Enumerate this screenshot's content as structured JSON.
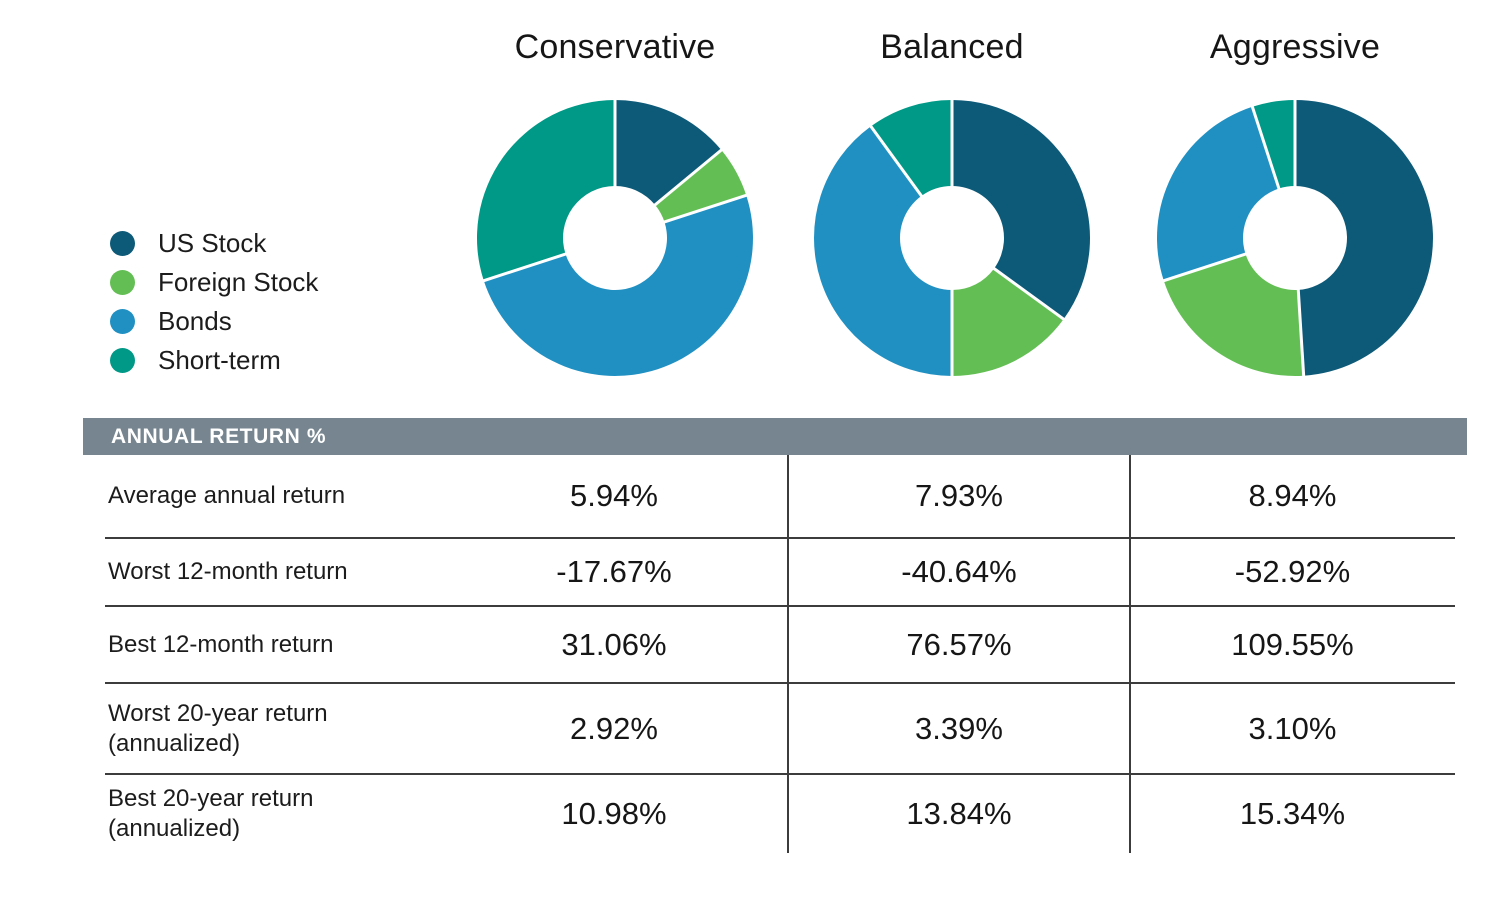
{
  "chart_data": {
    "type": "pie",
    "subtype": "donut",
    "legend_position": "left",
    "legend": [
      {
        "key": "us",
        "label": "US Stock",
        "color": "#0d5a78"
      },
      {
        "key": "foreign",
        "label": "Foreign Stock",
        "color": "#63bf54"
      },
      {
        "key": "bonds",
        "label": "Bonds",
        "color": "#2090c3"
      },
      {
        "key": "short",
        "label": "Short-term",
        "color": "#009886"
      }
    ],
    "charts": [
      {
        "label": "Conservative",
        "values": [
          14,
          6,
          50,
          30
        ]
      },
      {
        "label": "Balanced",
        "values": [
          35,
          15,
          40,
          10
        ]
      },
      {
        "label": "Aggressive",
        "values": [
          49,
          21,
          25,
          5
        ]
      }
    ],
    "start_angle_deg": 0,
    "direction": "clockwise"
  },
  "table": {
    "header": "ANNUAL RETURN %",
    "columns": [
      "Conservative",
      "Balanced",
      "Aggressive"
    ],
    "rows": [
      {
        "label": "Average annual return",
        "values": [
          "5.94%",
          "7.93%",
          "8.94%"
        ]
      },
      {
        "label": "Worst 12-month return",
        "values": [
          "-17.67%",
          "-40.64%",
          "-52.92%"
        ]
      },
      {
        "label": "Best 12-month return",
        "values": [
          "31.06%",
          "76.57%",
          "109.55%"
        ]
      },
      {
        "label": "Worst 20-year return\n(annualized)",
        "values": [
          "2.92%",
          "3.39%",
          "3.10%"
        ]
      },
      {
        "label": "Best 20-year return\n(annualized)",
        "values": [
          "10.98%",
          "13.84%",
          "15.34%"
        ]
      }
    ]
  },
  "colors": {
    "header_band_bg": "#76858f",
    "header_band_text": "#ffffff",
    "grid_line": "#3c3c3c",
    "background": "#ffffff",
    "text": "#1c1c1c"
  }
}
